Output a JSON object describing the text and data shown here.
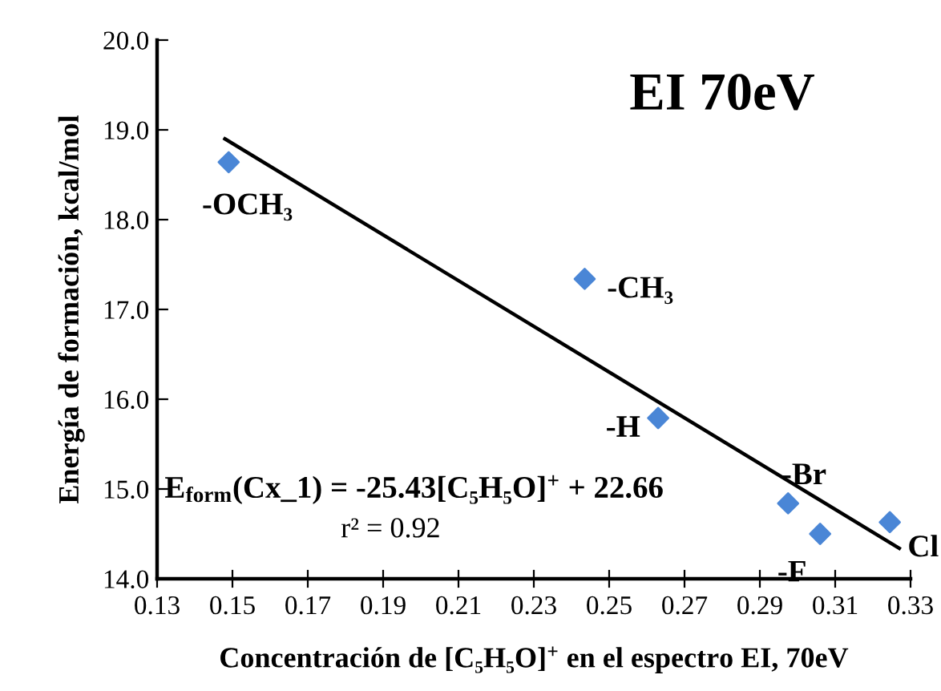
{
  "chart_data": {
    "type": "scatter",
    "xlabel": "Concentración de [C₅H₅O]$^{+}$ en el espectro EI, 70eV",
    "ylabel": "Energía de formación, kcal/mol",
    "series": [
      {
        "color": "#4a86d6",
        "marker": "diamond",
        "x": [
          0.149,
          0.2435,
          0.263,
          0.2975,
          0.306,
          0.3245
        ],
        "values": [
          18.64,
          17.34,
          15.79,
          14.84,
          14.5,
          14.63
        ]
      },
      {
        "type": "line",
        "color": "#000000",
        "marker": "none",
        "line_style": "solid",
        "x": [
          0.148,
          0.327
        ],
        "values": [
          18.9,
          14.34
        ]
      }
    ],
    "annotations": [
      {
        "text": "EI 70eV"
      },
      {
        "text": "-OCH₃",
        "x": 0.149,
        "y": 18.64
      },
      {
        "text": "-CH₃",
        "x": 0.2435,
        "y": 17.34
      },
      {
        "text": "-H",
        "x": 0.263,
        "y": 15.79
      },
      {
        "text": "-Br",
        "x": 0.2975,
        "y": 14.84
      },
      {
        "text": "-F",
        "x": 0.306,
        "y": 14.5
      },
      {
        "text": "Cl",
        "x": 0.3245,
        "y": 14.63
      },
      {
        "text": "E$_{form}$(Cx_1) = -25.43[C₅H₅O]$^{+}$ + 22.66"
      },
      {
        "text": "r² = 0.92"
      }
    ],
    "xlim": [
      0.13,
      0.33
    ],
    "xticks": [
      0.13,
      0.15,
      0.17,
      0.19,
      0.21,
      0.23,
      0.25,
      0.27,
      0.29,
      0.31,
      0.33
    ],
    "ylim": [
      14.0,
      20.0
    ],
    "yticks": [
      {
        "value": 14,
        "label": "14.0"
      },
      {
        "value": 15,
        "label": "15.0"
      },
      {
        "value": 16,
        "label": "16.0"
      },
      {
        "value": 17,
        "label": "17.0"
      },
      {
        "value": 18,
        "label": "18.0"
      },
      {
        "value": 19,
        "label": "19.0"
      },
      {
        "value": 20,
        "label": "20.0"
      }
    ],
    "grid": false,
    "legend": false
  }
}
